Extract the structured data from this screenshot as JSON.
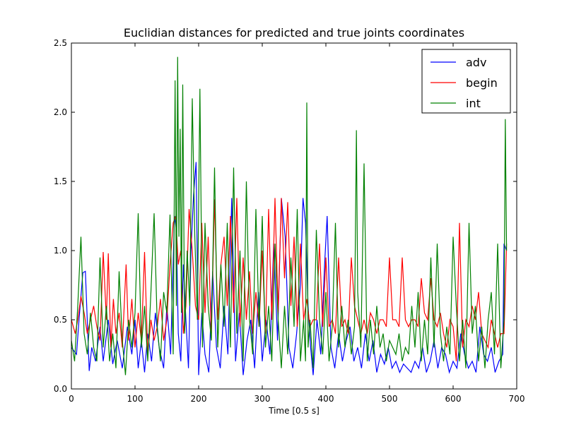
{
  "chart_data": {
    "type": "line",
    "title": "Euclidian distances for predicted and true joints coordinates",
    "xlabel": "Time [0.5 s]",
    "ylabel": "",
    "xlim": [
      0,
      700
    ],
    "ylim": [
      0,
      2.5
    ],
    "xticks": [
      "0",
      "100",
      "200",
      "300",
      "400",
      "500",
      "600",
      "700"
    ],
    "yticks": [
      "0.0",
      "0.5",
      "1.0",
      "1.5",
      "2.0",
      "2.5"
    ],
    "legend_position": "top-right",
    "grid": false,
    "series": [
      {
        "name": "adv",
        "color": "#0000ff",
        "x": [
          0,
          8,
          12,
          18,
          22,
          28,
          32,
          38,
          45,
          50,
          58,
          65,
          72,
          80,
          88,
          95,
          100,
          105,
          110,
          115,
          120,
          126,
          132,
          138,
          145,
          150,
          156,
          162,
          165,
          168,
          172,
          176,
          180,
          184,
          188,
          192,
          196,
          200,
          205,
          210,
          216,
          222,
          228,
          234,
          240,
          246,
          252,
          258,
          264,
          270,
          276,
          282,
          288,
          294,
          300,
          306,
          312,
          318,
          324,
          330,
          336,
          342,
          348,
          354,
          360,
          364,
          368,
          372,
          376,
          380,
          386,
          392,
          398,
          402,
          408,
          414,
          420,
          426,
          432,
          438,
          444,
          450,
          456,
          462,
          468,
          474,
          480,
          486,
          492,
          498,
          504,
          510,
          516,
          522,
          528,
          534,
          540,
          546,
          552,
          558,
          564,
          570,
          576,
          582,
          588,
          594,
          600,
          606,
          612,
          618,
          624,
          630,
          636,
          642,
          648,
          654,
          660,
          666,
          672,
          678,
          680,
          684
        ],
        "y": [
          0.3,
          0.25,
          0.5,
          0.84,
          0.85,
          0.13,
          0.3,
          0.2,
          0.45,
          0.2,
          0.5,
          0.18,
          0.35,
          0.15,
          0.45,
          0.25,
          0.5,
          0.15,
          0.35,
          0.12,
          0.4,
          0.2,
          0.55,
          0.3,
          0.15,
          0.6,
          0.25,
          1.25,
          1.15,
          0.4,
          0.2,
          0.9,
          0.5,
          0.15,
          1.0,
          1.4,
          1.64,
          0.1,
          0.55,
          0.25,
          0.12,
          0.85,
          0.3,
          0.15,
          0.6,
          0.25,
          1.38,
          0.2,
          0.55,
          0.1,
          0.35,
          0.5,
          0.15,
          0.7,
          0.2,
          0.5,
          0.25,
          1.05,
          0.35,
          1.38,
          1.1,
          0.3,
          0.15,
          0.4,
          0.75,
          1.38,
          1.2,
          0.6,
          0.3,
          0.1,
          0.5,
          0.25,
          0.9,
          1.25,
          0.3,
          0.15,
          0.4,
          0.2,
          0.35,
          0.45,
          0.2,
          0.3,
          0.15,
          0.4,
          0.2,
          0.35,
          0.12,
          0.25,
          0.18,
          0.3,
          0.15,
          0.2,
          0.12,
          0.18,
          0.15,
          0.12,
          0.2,
          0.15,
          0.3,
          0.12,
          0.2,
          0.35,
          0.15,
          0.3,
          0.25,
          0.12,
          0.2,
          0.15,
          0.4,
          0.25,
          0.15,
          0.2,
          0.12,
          0.45,
          0.25,
          0.2,
          0.3,
          0.12,
          0.2,
          0.25,
          1.05,
          1.0
        ]
      },
      {
        "name": "begin",
        "color": "#ff0000",
        "x": [
          0,
          6,
          10,
          15,
          20,
          25,
          30,
          35,
          40,
          45,
          50,
          55,
          58,
          62,
          66,
          70,
          75,
          80,
          86,
          90,
          95,
          100,
          105,
          110,
          115,
          120,
          125,
          130,
          135,
          140,
          145,
          150,
          155,
          160,
          164,
          168,
          172,
          176,
          180,
          185,
          190,
          195,
          200,
          205,
          210,
          215,
          220,
          225,
          230,
          235,
          240,
          245,
          250,
          255,
          260,
          265,
          270,
          275,
          280,
          285,
          290,
          295,
          300,
          305,
          310,
          315,
          320,
          325,
          330,
          335,
          340,
          345,
          350,
          355,
          360,
          365,
          370,
          375,
          380,
          385,
          390,
          395,
          400,
          405,
          410,
          415,
          420,
          425,
          430,
          435,
          440,
          445,
          450,
          455,
          460,
          465,
          470,
          475,
          480,
          485,
          490,
          495,
          500,
          505,
          510,
          515,
          520,
          525,
          530,
          535,
          540,
          545,
          550,
          555,
          560,
          565,
          570,
          575,
          580,
          585,
          590,
          595,
          600,
          605,
          610,
          615,
          620,
          625,
          630,
          635,
          640,
          645,
          650,
          655,
          660,
          665,
          670,
          675,
          680,
          684
        ],
        "y": [
          0.5,
          0.4,
          0.5,
          0.67,
          0.55,
          0.4,
          0.5,
          0.6,
          0.45,
          0.35,
          0.99,
          0.5,
          0.98,
          0.3,
          0.65,
          0.4,
          0.55,
          0.3,
          0.9,
          0.35,
          0.65,
          0.3,
          0.55,
          0.35,
          0.99,
          0.25,
          0.5,
          0.35,
          0.45,
          0.65,
          0.35,
          0.5,
          0.9,
          1.2,
          1.25,
          0.9,
          1.0,
          0.4,
          0.6,
          1.3,
          1.0,
          0.6,
          0.5,
          1.2,
          0.55,
          1.1,
          0.4,
          1.37,
          0.5,
          0.9,
          1.1,
          0.6,
          1.25,
          0.55,
          1.38,
          0.45,
          0.95,
          0.5,
          0.85,
          0.4,
          0.7,
          0.45,
          1.0,
          0.4,
          1.3,
          0.5,
          1.38,
          0.55,
          1.38,
          0.8,
          1.35,
          0.6,
          1.1,
          0.45,
          1.05,
          0.5,
          0.65,
          0.45,
          0.5,
          0.5,
          1.05,
          0.45,
          0.95,
          0.45,
          0.5,
          0.4,
          0.95,
          0.45,
          0.5,
          0.4,
          0.95,
          0.6,
          0.5,
          0.4,
          0.5,
          0.4,
          0.55,
          0.5,
          0.4,
          0.5,
          0.5,
          0.45,
          0.95,
          0.5,
          0.5,
          0.45,
          0.95,
          0.5,
          0.45,
          0.5,
          0.5,
          0.45,
          0.8,
          0.55,
          0.5,
          0.8,
          0.5,
          0.45,
          0.55,
          0.4,
          0.3,
          0.5,
          0.45,
          0.2,
          1.2,
          0.3,
          0.5,
          0.45,
          0.6,
          0.5,
          0.7,
          0.4,
          0.35,
          0.3,
          0.5,
          0.4,
          0.3,
          0.4,
          0.4,
          1.05
        ]
      },
      {
        "name": "int",
        "color": "#008000",
        "x": [
          0,
          5,
          10,
          15,
          20,
          25,
          30,
          35,
          40,
          45,
          50,
          55,
          60,
          65,
          70,
          75,
          80,
          85,
          90,
          95,
          100,
          105,
          110,
          115,
          120,
          125,
          130,
          135,
          140,
          145,
          150,
          155,
          160,
          163,
          165,
          167,
          169,
          171,
          173,
          175,
          178,
          182,
          186,
          190,
          194,
          198,
          202,
          206,
          210,
          215,
          220,
          225,
          230,
          235,
          240,
          245,
          250,
          255,
          260,
          265,
          270,
          275,
          280,
          285,
          290,
          295,
          300,
          305,
          310,
          315,
          320,
          325,
          330,
          335,
          340,
          345,
          350,
          355,
          360,
          365,
          368,
          370,
          372,
          375,
          380,
          385,
          390,
          395,
          400,
          405,
          410,
          415,
          420,
          425,
          430,
          435,
          440,
          445,
          448,
          450,
          455,
          460,
          465,
          470,
          475,
          480,
          485,
          490,
          495,
          500,
          505,
          510,
          515,
          520,
          525,
          530,
          535,
          540,
          545,
          550,
          555,
          560,
          565,
          570,
          575,
          580,
          585,
          590,
          595,
          600,
          605,
          610,
          615,
          620,
          625,
          630,
          635,
          640,
          645,
          650,
          655,
          660,
          665,
          670,
          675,
          680,
          682,
          684
        ],
        "y": [
          0.35,
          0.2,
          0.6,
          1.1,
          0.4,
          0.25,
          0.55,
          0.3,
          0.2,
          0.95,
          0.3,
          0.6,
          0.2,
          0.4,
          0.15,
          0.85,
          0.35,
          0.1,
          0.5,
          0.3,
          0.55,
          1.27,
          0.3,
          0.6,
          0.2,
          0.7,
          1.27,
          0.45,
          0.2,
          0.7,
          0.55,
          1.26,
          0.25,
          2.23,
          0.6,
          2.4,
          1.1,
          1.88,
          0.55,
          2.2,
          0.4,
          1.0,
          0.6,
          2.1,
          1.1,
          0.5,
          2.17,
          0.3,
          1.2,
          0.6,
          0.35,
          1.6,
          0.3,
          0.9,
          0.45,
          1.2,
          0.3,
          1.6,
          0.4,
          1.0,
          0.2,
          1.5,
          0.5,
          0.25,
          1.3,
          0.45,
          1.25,
          0.3,
          0.6,
          0.2,
          1.05,
          0.5,
          0.15,
          0.6,
          0.25,
          0.95,
          0.45,
          1.3,
          0.2,
          0.5,
          0.2,
          2.07,
          0.3,
          0.5,
          0.15,
          1.15,
          0.5,
          0.25,
          0.7,
          0.2,
          0.45,
          1.2,
          0.3,
          0.6,
          0.3,
          0.5,
          0.25,
          0.45,
          1.87,
          0.7,
          0.3,
          1.63,
          0.2,
          0.5,
          0.25,
          0.6,
          0.3,
          0.4,
          0.2,
          0.35,
          0.3,
          0.25,
          0.4,
          0.2,
          0.3,
          0.25,
          0.6,
          0.3,
          0.7,
          0.2,
          0.5,
          0.25,
          0.95,
          0.3,
          1.05,
          0.4,
          0.2,
          0.45,
          0.25,
          1.1,
          0.6,
          0.2,
          0.5,
          0.15,
          1.2,
          0.4,
          0.6,
          0.2,
          0.45,
          0.15,
          0.5,
          0.7,
          0.25,
          1.05,
          0.15,
          0.5,
          1.95,
          1.0
        ]
      }
    ]
  }
}
